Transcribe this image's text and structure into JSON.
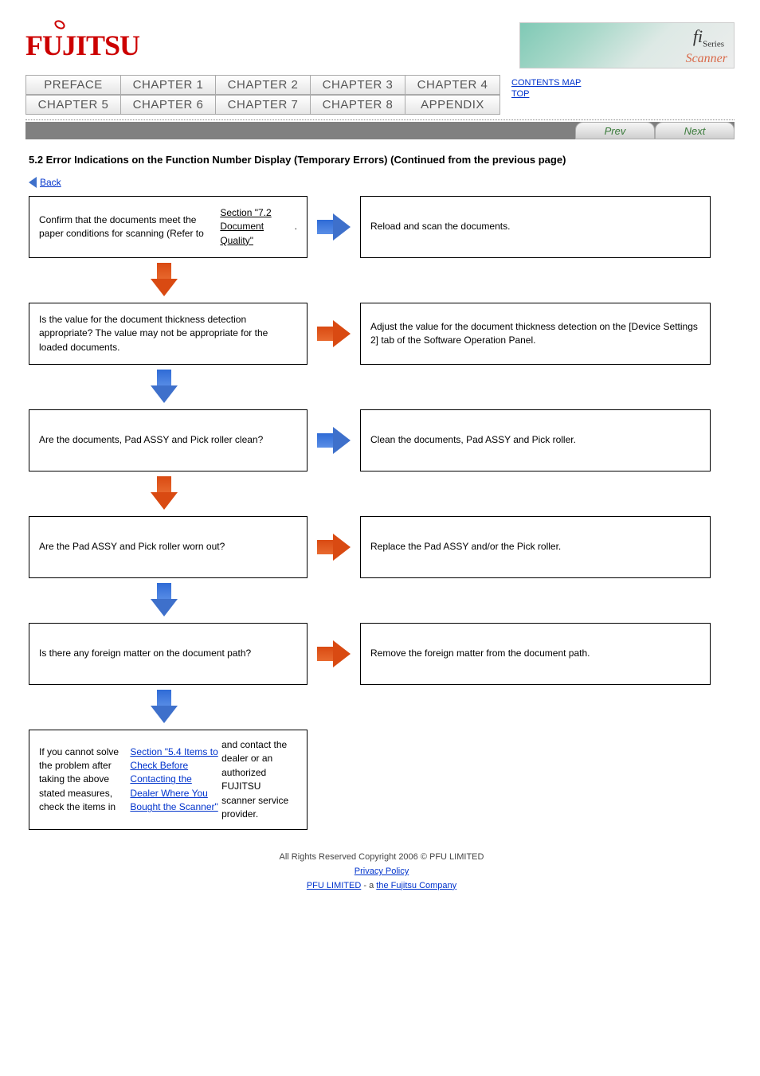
{
  "logo_text": "FUJITSU",
  "series_badge": {
    "fi": "fi",
    "series": "Series",
    "scanner": "Scanner"
  },
  "tabs": {
    "row1": [
      "PREFACE",
      "CHAPTER 1",
      "CHAPTER 2",
      "CHAPTER 3",
      "CHAPTER 4"
    ],
    "row2": [
      "CHAPTER 5",
      "CHAPTER 6",
      "CHAPTER 7",
      "CHAPTER 8",
      "APPENDIX"
    ]
  },
  "side_links": {
    "contents": "CONTENTS MAP",
    "top": "TOP"
  },
  "nav": {
    "prev": "Prev",
    "next": "Next"
  },
  "title": "5.2 Error Indications on the Function Number Display (Temporary Errors) (Continued from the previous page)",
  "back_label": "Back",
  "steps": [
    {
      "left_html": "Confirm that the documents meet the paper conditions for scanning (Refer to <a href='#' class='blk'>Section \"7.2 Document Quality\"</a>.",
      "right_text": "Reload and scan the documents.",
      "h_color": "blue",
      "v_color": "orange"
    },
    {
      "left_text": "Is the value for the document thickness detection appropriate? The value may not be appropriate for the loaded documents.",
      "right_text": "Adjust the value for the document thickness detection on the [Device Settings 2] tab of the Software Operation Panel.",
      "h_color": "orange",
      "v_color": "blue"
    },
    {
      "left_text": "Are the documents, Pad ASSY and Pick roller clean?",
      "right_text": "Clean the documents, Pad ASSY and Pick roller.",
      "h_color": "blue",
      "v_color": "orange"
    },
    {
      "left_text": "Are the Pad ASSY and Pick roller worn out?",
      "right_text": "Replace the Pad ASSY and/or the Pick roller.",
      "h_color": "orange",
      "v_color": "blue"
    },
    {
      "left_text": "Is there any foreign matter on the document path?",
      "right_text": "Remove the foreign matter from the document path.",
      "h_color": "orange",
      "v_color": "blue"
    }
  ],
  "final_box_html": "If you cannot solve the problem after taking the above stated measures, check the items in <a href='#'>Section \"5.4 Items to Check Before Contacting the Dealer Where You Bought the Scanner\"</a> and contact the dealer or an authorized FUJITSU scanner service provider.",
  "footer": {
    "copyright": "All Rights Reserved Copyright 2006 © PFU LIMITED",
    "links": {
      "privacy": "Privacy Policy",
      "pfu": "PFU LIMITED",
      "fujitsu": "the Fujitsu Company",
      "sep": " - a "
    }
  },
  "colors": {
    "blue": "#3e70cb",
    "orange": "#d94a12",
    "link": "#0033cc"
  }
}
